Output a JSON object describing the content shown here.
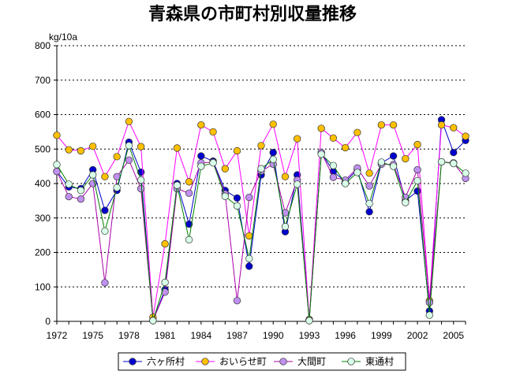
{
  "chart_data": {
    "type": "line",
    "title": "青森県の市町村別収量推移",
    "ylabel": "kg/10a",
    "xlabel": "",
    "ylim": [
      0,
      800
    ],
    "yticks": [
      0,
      100,
      200,
      300,
      400,
      500,
      600,
      700,
      800
    ],
    "xtick_labels": [
      "1972",
      "1975",
      "1978",
      "1981",
      "1984",
      "1987",
      "1990",
      "1993",
      "1996",
      "1999",
      "2002",
      "2005"
    ],
    "x": [
      1972,
      1973,
      1974,
      1975,
      1976,
      1977,
      1978,
      1979,
      1980,
      1981,
      1982,
      1983,
      1984,
      1985,
      1986,
      1987,
      1988,
      1989,
      1990,
      1991,
      1992,
      1993,
      1994,
      1995,
      1996,
      1997,
      1998,
      1999,
      2000,
      2001,
      2002,
      2003,
      2004,
      2005,
      2006
    ],
    "grid": "horizontal-dotted",
    "legend_position": "bottom",
    "series": [
      {
        "name": "六ヶ所村",
        "color": "#0000c8",
        "marker_fill": "#0000cc",
        "values": [
          435,
          390,
          385,
          440,
          322,
          380,
          520,
          433,
          2,
          92,
          400,
          282,
          480,
          465,
          380,
          358,
          160,
          425,
          490,
          260,
          425,
          5,
          490,
          435,
          405,
          440,
          318,
          460,
          480,
          350,
          378,
          30,
          585,
          490,
          525
        ]
      },
      {
        "name": "おいらせ町",
        "color": "#ff00ff",
        "marker_fill": "#ffc000",
        "values": [
          540,
          498,
          495,
          508,
          420,
          478,
          580,
          507,
          12,
          225,
          503,
          405,
          570,
          550,
          443,
          495,
          248,
          510,
          572,
          420,
          530,
          5,
          560,
          532,
          504,
          548,
          430,
          570,
          570,
          472,
          513,
          60,
          570,
          562,
          537
        ]
      },
      {
        "name": "大間町",
        "color": "#aa00aa",
        "marker_fill": "#c090f0",
        "values": [
          435,
          362,
          355,
          400,
          112,
          420,
          468,
          385,
          3,
          85,
          385,
          372,
          460,
          462,
          370,
          60,
          360,
          436,
          456,
          315,
          410,
          3,
          490,
          418,
          410,
          445,
          393,
          456,
          455,
          360,
          440,
          55,
          463,
          460,
          415
        ]
      },
      {
        "name": "東通村",
        "color": "#008000",
        "marker_fill": "#d8ffe8",
        "values": [
          455,
          398,
          380,
          425,
          262,
          388,
          510,
          410,
          2,
          113,
          395,
          237,
          450,
          460,
          363,
          335,
          182,
          443,
          470,
          275,
          398,
          2,
          485,
          452,
          400,
          432,
          342,
          462,
          450,
          345,
          408,
          18,
          463,
          458,
          430
        ]
      }
    ]
  }
}
